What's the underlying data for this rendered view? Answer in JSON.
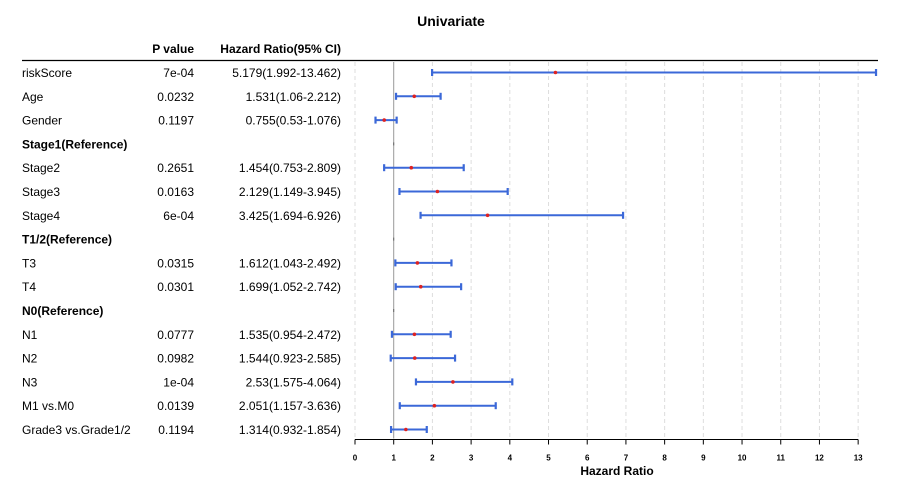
{
  "chart_data": {
    "type": "forest",
    "title": "Univariate",
    "columns": {
      "p": "P value",
      "hr": "Hazard Ratio(95% CI)"
    },
    "xlabel": "Hazard Ratio",
    "xlim": [
      0,
      13.5
    ],
    "xticks": [
      0,
      1,
      2,
      3,
      4,
      5,
      6,
      7,
      8,
      9,
      10,
      11,
      12,
      13
    ],
    "reference_line": 1,
    "grid": true,
    "colors": {
      "ci": "#3b68d8",
      "point": "#dd2222",
      "grid": "#dddddd",
      "reference": "#999999"
    },
    "rows": [
      {
        "label": "riskScore",
        "p": "7e-04",
        "hr_text": "5.179(1.992-13.462)",
        "hr": 5.179,
        "lo": 1.992,
        "hi": 13.462
      },
      {
        "label": "Age",
        "p": "0.0232",
        "hr_text": "1.531(1.06-2.212)",
        "hr": 1.531,
        "lo": 1.06,
        "hi": 2.212
      },
      {
        "label": "Gender",
        "p": "0.1197",
        "hr_text": "0.755(0.53-1.076)",
        "hr": 0.755,
        "lo": 0.53,
        "hi": 1.076
      },
      {
        "label": "Stage1(Reference)",
        "header": true
      },
      {
        "label": "Stage2",
        "p": "0.2651",
        "hr_text": "1.454(0.753-2.809)",
        "hr": 1.454,
        "lo": 0.753,
        "hi": 2.809
      },
      {
        "label": "Stage3",
        "p": "0.0163",
        "hr_text": "2.129(1.149-3.945)",
        "hr": 2.129,
        "lo": 1.149,
        "hi": 3.945
      },
      {
        "label": "Stage4",
        "p": "6e-04",
        "hr_text": "3.425(1.694-6.926)",
        "hr": 3.425,
        "lo": 1.694,
        "hi": 6.926
      },
      {
        "label": "T1/2(Reference)",
        "header": true
      },
      {
        "label": "T3",
        "p": "0.0315",
        "hr_text": "1.612(1.043-2.492)",
        "hr": 1.612,
        "lo": 1.043,
        "hi": 2.492
      },
      {
        "label": "T4",
        "p": "0.0301",
        "hr_text": "1.699(1.052-2.742)",
        "hr": 1.699,
        "lo": 1.052,
        "hi": 2.742
      },
      {
        "label": "N0(Reference)",
        "header": true
      },
      {
        "label": "N1",
        "p": "0.0777",
        "hr_text": "1.535(0.954-2.472)",
        "hr": 1.535,
        "lo": 0.954,
        "hi": 2.472
      },
      {
        "label": "N2",
        "p": "0.0982",
        "hr_text": "1.544(0.923-2.585)",
        "hr": 1.544,
        "lo": 0.923,
        "hi": 2.585
      },
      {
        "label": "N3",
        "p": "1e-04",
        "hr_text": "2.53(1.575-4.064)",
        "hr": 2.53,
        "lo": 1.575,
        "hi": 4.064
      },
      {
        "label": "M1 vs.M0",
        "p": "0.0139",
        "hr_text": "2.051(1.157-3.636)",
        "hr": 2.051,
        "lo": 1.157,
        "hi": 3.636
      },
      {
        "label": "Grade3 vs.Grade1/2",
        "p": "0.1194",
        "hr_text": "1.314(0.932-1.854)",
        "hr": 1.314,
        "lo": 0.932,
        "hi": 1.854
      }
    ]
  }
}
